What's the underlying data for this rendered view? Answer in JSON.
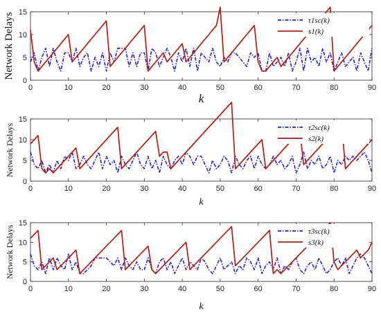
{
  "chart_data": [
    {
      "type": "line",
      "ylabel": "Network Delays",
      "xlabel": "k",
      "xlim": [
        0,
        90
      ],
      "ylim": [
        0,
        15
      ],
      "xticks": [
        "0",
        "10",
        "20",
        "30",
        "40",
        "50",
        "60",
        "70",
        "80",
        "90"
      ],
      "yticks": [
        "0",
        "5",
        "10",
        "15"
      ],
      "legend_position": "top-right",
      "grid": false,
      "series": [
        {
          "name": "τ1sc(k)",
          "color": "#1f1fd6",
          "style": "dash-dot",
          "x": [
            0,
            1,
            2,
            3,
            4,
            5,
            6,
            7,
            8,
            9,
            10,
            11,
            12,
            13,
            14,
            15,
            16,
            17,
            18,
            19,
            20,
            21,
            22,
            23,
            24,
            25,
            26,
            27,
            28,
            29,
            30,
            31,
            32,
            33,
            34,
            35,
            36,
            37,
            38,
            39,
            40,
            41,
            42,
            43,
            44,
            45,
            46,
            47,
            48,
            49,
            50,
            51,
            52,
            53,
            54,
            55,
            56,
            57,
            58,
            59,
            60,
            61,
            62,
            63,
            64,
            65,
            66,
            67,
            68,
            69,
            70,
            71,
            72,
            73,
            74,
            75,
            76,
            77,
            78,
            79,
            80,
            81,
            82,
            83,
            84,
            85,
            86,
            87,
            88,
            89,
            90
          ],
          "y": [
            4,
            6,
            2,
            5,
            7,
            3,
            7,
            4,
            2,
            6,
            6,
            4,
            7,
            3,
            5,
            6,
            2,
            5,
            3,
            6,
            2,
            6,
            4,
            7,
            7,
            7,
            3,
            6,
            3,
            6,
            6,
            2,
            7,
            6,
            3,
            5,
            7,
            5,
            2,
            6,
            4,
            7,
            3,
            7,
            2,
            6,
            5,
            4,
            7,
            4,
            3,
            5,
            4,
            6,
            6,
            5,
            4,
            3,
            6,
            5,
            6,
            2,
            2,
            6,
            3,
            4,
            5,
            3,
            6,
            2,
            4,
            7,
            2,
            7,
            4,
            5,
            3,
            7,
            4,
            6,
            2,
            4,
            6,
            3,
            4,
            5,
            2,
            6,
            4,
            2,
            7
          ]
        },
        {
          "name": "s1(k)",
          "color": "#b21e12",
          "style": "solid",
          "x": [
            0,
            1,
            2,
            3,
            4,
            5,
            6,
            7,
            8,
            9,
            10,
            11,
            12,
            13,
            14,
            15,
            16,
            17,
            18,
            19,
            20,
            21,
            22,
            23,
            24,
            25,
            26,
            27,
            28,
            29,
            30,
            31,
            32,
            33,
            34,
            35,
            36,
            37,
            38,
            39,
            40,
            41,
            42,
            43,
            44,
            45,
            46,
            47,
            48,
            49,
            50,
            51,
            52,
            53,
            54,
            55,
            56,
            57,
            58,
            59,
            60,
            61,
            62,
            63,
            64,
            65,
            66,
            67,
            68,
            69,
            70,
            71,
            72,
            73,
            74,
            75,
            76,
            77,
            78,
            79,
            80,
            81,
            82,
            83,
            84,
            85,
            86,
            87,
            88,
            89,
            90
          ],
          "y": [
            11,
            4,
            2,
            3,
            4,
            5,
            6,
            7,
            8,
            9,
            10,
            4,
            5,
            6,
            7,
            8,
            9,
            10,
            11,
            12,
            13,
            3,
            4,
            5,
            6,
            7,
            8,
            9,
            10,
            11,
            12,
            2,
            3,
            4,
            5,
            6,
            4,
            5,
            6,
            7,
            8,
            4,
            5,
            6,
            7,
            8,
            9,
            10,
            11,
            12,
            16,
            4,
            5,
            6,
            7,
            8,
            9,
            10,
            11,
            12,
            4,
            2,
            2,
            3,
            4,
            5,
            3,
            4,
            5,
            6,
            7,
            8,
            9,
            10,
            11,
            12,
            13,
            14,
            15,
            16,
            2,
            3,
            4,
            5,
            6,
            7,
            8,
            9,
            10,
            11,
            12
          ]
        }
      ]
    },
    {
      "type": "line",
      "ylabel": "Network Delays",
      "xlabel": "k",
      "xlim": [
        0,
        90
      ],
      "ylim": [
        0,
        15
      ],
      "xticks": [
        "0",
        "10",
        "20",
        "30",
        "40",
        "50",
        "60",
        "70",
        "80",
        "90"
      ],
      "yticks": [
        "0",
        "5",
        "10",
        "15"
      ],
      "legend_position": "top-right",
      "grid": false,
      "series": [
        {
          "name": "τ2sc(k)",
          "color": "#1f1fd6",
          "style": "dash-dot",
          "x": [
            0,
            1,
            2,
            3,
            4,
            5,
            6,
            7,
            8,
            9,
            10,
            11,
            12,
            13,
            14,
            15,
            16,
            17,
            18,
            19,
            20,
            21,
            22,
            23,
            24,
            25,
            26,
            27,
            28,
            29,
            30,
            31,
            32,
            33,
            34,
            35,
            36,
            37,
            38,
            39,
            40,
            41,
            42,
            43,
            44,
            45,
            46,
            47,
            48,
            49,
            50,
            51,
            52,
            53,
            54,
            55,
            56,
            57,
            58,
            59,
            60,
            61,
            62,
            63,
            64,
            65,
            66,
            67,
            68,
            69,
            70,
            71,
            72,
            73,
            74,
            75,
            76,
            77,
            78,
            79,
            80,
            81,
            82,
            83,
            84,
            85,
            86,
            87,
            88,
            89,
            90
          ],
          "y": [
            7,
            4,
            3,
            5,
            2,
            4,
            2,
            5,
            3,
            6,
            5,
            7,
            3,
            4,
            6,
            4,
            3,
            5,
            7,
            3,
            6,
            4,
            5,
            2,
            6,
            4,
            3,
            5,
            7,
            4,
            3,
            6,
            3,
            5,
            2,
            6,
            4,
            3,
            5,
            6,
            4,
            7,
            6,
            4,
            6,
            6,
            4,
            2,
            5,
            3,
            4,
            6,
            5,
            2,
            6,
            4,
            3,
            5,
            6,
            3,
            6,
            4,
            3,
            4,
            6,
            4,
            5,
            3,
            4,
            6,
            2,
            4,
            7,
            3,
            5,
            4,
            6,
            3,
            4,
            6,
            2,
            5,
            4,
            6,
            5,
            6,
            5,
            6,
            7,
            5,
            2
          ]
        },
        {
          "name": "s2(k)",
          "color": "#b21e12",
          "style": "solid",
          "x": [
            0,
            1,
            2,
            3,
            4,
            5,
            6,
            7,
            8,
            9,
            10,
            11,
            12,
            13,
            14,
            15,
            16,
            17,
            18,
            19,
            20,
            21,
            22,
            23,
            24,
            25,
            26,
            27,
            28,
            29,
            30,
            31,
            32,
            33,
            34,
            35,
            36,
            37,
            38,
            39,
            40,
            41,
            42,
            43,
            44,
            45,
            46,
            47,
            48,
            49,
            50,
            51,
            52,
            53,
            54,
            55,
            56,
            57,
            58,
            59,
            60,
            61,
            62,
            63,
            64,
            65,
            66,
            67,
            68,
            69,
            70,
            71,
            72,
            73,
            74,
            75,
            76,
            77,
            78,
            79,
            80,
            81,
            82,
            83,
            84,
            85,
            86,
            87,
            88,
            89,
            90
          ],
          "y": [
            9,
            10,
            11,
            3,
            2,
            3,
            2,
            3,
            4,
            5,
            6,
            7,
            8,
            3,
            4,
            5,
            6,
            7,
            8,
            9,
            10,
            11,
            12,
            13,
            3,
            4,
            5,
            6,
            7,
            8,
            9,
            10,
            11,
            12,
            6,
            7,
            7,
            3,
            4,
            5,
            6,
            7,
            8,
            9,
            10,
            11,
            12,
            13,
            14,
            15,
            16,
            17,
            18,
            19,
            3,
            4,
            5,
            6,
            7,
            8,
            9,
            10,
            3,
            4,
            5,
            6,
            7,
            8,
            9,
            10,
            11,
            12,
            4,
            5,
            6,
            7,
            8,
            9,
            10,
            11,
            12,
            13,
            14,
            3,
            4,
            5,
            6,
            7,
            8,
            9,
            10
          ]
        }
      ]
    },
    {
      "type": "line",
      "ylabel": "Network Delays",
      "xlabel": "k",
      "xlim": [
        0,
        90
      ],
      "ylim": [
        0,
        15
      ],
      "xticks": [
        "0",
        "10",
        "20",
        "30",
        "40",
        "50",
        "60",
        "70",
        "80",
        "90"
      ],
      "yticks": [
        "0",
        "5",
        "10",
        "15"
      ],
      "legend_position": "top-right",
      "grid": false,
      "series": [
        {
          "name": "τ3sc(k)",
          "color": "#1f1fd6",
          "style": "dash-dot",
          "x": [
            0,
            1,
            2,
            3,
            4,
            5,
            6,
            7,
            8,
            9,
            10,
            11,
            12,
            13,
            14,
            15,
            16,
            17,
            18,
            19,
            20,
            21,
            22,
            23,
            24,
            25,
            26,
            27,
            28,
            29,
            30,
            31,
            32,
            33,
            34,
            35,
            36,
            37,
            38,
            39,
            40,
            41,
            42,
            43,
            44,
            45,
            46,
            47,
            48,
            49,
            50,
            51,
            52,
            53,
            54,
            55,
            56,
            57,
            58,
            59,
            60,
            61,
            62,
            63,
            64,
            65,
            66,
            67,
            68,
            69,
            70,
            71,
            72,
            73,
            74,
            75,
            76,
            77,
            78,
            79,
            80,
            81,
            82,
            83,
            84,
            85,
            86,
            87,
            88,
            89,
            90
          ],
          "y": [
            7,
            4,
            3,
            5,
            2,
            6,
            3,
            6,
            4,
            3,
            7,
            3,
            5,
            2,
            2,
            3,
            4,
            6,
            6,
            6,
            6,
            5,
            4,
            6,
            3,
            6,
            4,
            3,
            5,
            3,
            3,
            6,
            3,
            2,
            5,
            6,
            3,
            5,
            2,
            4,
            6,
            3,
            5,
            4,
            3,
            6,
            5,
            3,
            2,
            4,
            6,
            3,
            4,
            5,
            2,
            4,
            3,
            6,
            5,
            3,
            6,
            2,
            4,
            5,
            3,
            6,
            2,
            4,
            3,
            5,
            6,
            3,
            2,
            4,
            5,
            3,
            6,
            4,
            2,
            3,
            5,
            6,
            4,
            6,
            2,
            4,
            6,
            7,
            6,
            4,
            2
          ]
        },
        {
          "name": "s3(k)",
          "color": "#b21e12",
          "style": "solid",
          "x": [
            0,
            1,
            2,
            3,
            4,
            5,
            6,
            7,
            8,
            9,
            10,
            11,
            12,
            13,
            14,
            15,
            16,
            17,
            18,
            19,
            20,
            21,
            22,
            23,
            24,
            25,
            26,
            27,
            28,
            29,
            30,
            31,
            32,
            33,
            34,
            35,
            36,
            37,
            38,
            39,
            40,
            41,
            42,
            43,
            44,
            45,
            46,
            47,
            48,
            49,
            50,
            51,
            52,
            53,
            54,
            55,
            56,
            57,
            58,
            59,
            60,
            61,
            62,
            63,
            64,
            65,
            66,
            67,
            68,
            69,
            70,
            71,
            72,
            73,
            74,
            75,
            76,
            77,
            78,
            79,
            80,
            81,
            82,
            83,
            84,
            85,
            86,
            87,
            88,
            89,
            90
          ],
          "y": [
            11,
            12,
            13,
            3,
            4,
            5,
            6,
            3,
            4,
            5,
            6,
            7,
            8,
            2,
            3,
            4,
            5,
            6,
            7,
            8,
            9,
            10,
            11,
            12,
            13,
            3,
            4,
            5,
            6,
            7,
            8,
            9,
            3,
            2,
            3,
            4,
            5,
            6,
            7,
            8,
            9,
            10,
            3,
            4,
            5,
            6,
            7,
            8,
            9,
            10,
            11,
            12,
            13,
            14,
            4,
            5,
            6,
            7,
            8,
            9,
            10,
            11,
            12,
            13,
            2,
            3,
            2,
            3,
            4,
            5,
            6,
            7,
            8,
            9,
            10,
            11,
            12,
            13,
            14,
            15,
            5,
            3,
            4,
            5,
            6,
            7,
            8,
            6,
            7,
            8,
            10
          ]
        }
      ]
    }
  ]
}
